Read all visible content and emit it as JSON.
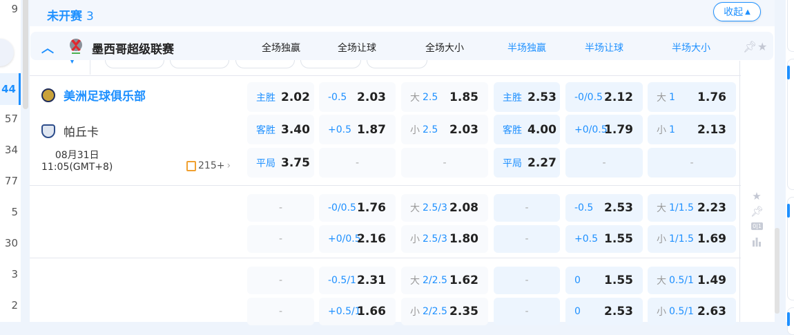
{
  "left_nav": {
    "counts": [
      "9",
      "44",
      "57",
      "34",
      "77",
      "5",
      "30",
      "3",
      "2"
    ],
    "selected_index": 1
  },
  "status": {
    "title": "未开赛",
    "count": "3"
  },
  "collapse_button": {
    "label": "收起",
    "icon": "caret-up-icon"
  },
  "league": {
    "name": "墨西哥超级联赛",
    "logo": "liga-mx-logo",
    "logo_text": "LIGA MX"
  },
  "columns": [
    "全场独赢",
    "全场让球",
    "全场大小",
    "半场独赢",
    "半场让球",
    "半场大小"
  ],
  "colors": {
    "accent": "#1e90ff",
    "ht_cell_bg": "#edf5fe",
    "ft_cell_bg": "#f8fafd"
  },
  "match": {
    "home": "美洲足球俱乐部",
    "away": "帕丘卡",
    "date": "08月31日",
    "time": "11:05(GMT+8)",
    "more_markets": "215+"
  },
  "sections": [
    {
      "rows": [
        [
          {
            "label": "主胜",
            "odds": "2.02"
          },
          {
            "line": "-0.5",
            "odds": "2.03"
          },
          {
            "ou": "大",
            "line": "2.5",
            "odds": "1.85"
          },
          {
            "label": "主胜",
            "odds": "2.53"
          },
          {
            "line": "-0/0.5",
            "odds": "2.12"
          },
          {
            "ou": "大",
            "line": "1",
            "odds": "1.76"
          }
        ],
        [
          {
            "label": "客胜",
            "odds": "3.40"
          },
          {
            "line": "+0.5",
            "odds": "1.87"
          },
          {
            "ou": "小",
            "line": "2.5",
            "odds": "2.03"
          },
          {
            "label": "客胜",
            "odds": "4.00"
          },
          {
            "line": "+0/0.5",
            "odds": "1.79"
          },
          {
            "ou": "小",
            "line": "1",
            "odds": "2.13"
          }
        ],
        [
          {
            "label": "平局",
            "odds": "3.75"
          },
          {
            "dash": "-"
          },
          {
            "dash": "-"
          },
          {
            "label": "平局",
            "odds": "2.27"
          },
          {
            "dash": "-"
          },
          {
            "dash": "-"
          }
        ]
      ]
    },
    {
      "rows": [
        [
          {
            "dash": "-"
          },
          {
            "line": "-0/0.5",
            "odds": "1.76"
          },
          {
            "ou": "大",
            "line": "2.5/3",
            "odds": "2.08"
          },
          {
            "dash": "-"
          },
          {
            "line": "-0.5",
            "odds": "2.53"
          },
          {
            "ou": "大",
            "line": "1/1.5",
            "odds": "2.23"
          }
        ],
        [
          {
            "dash": "-"
          },
          {
            "line": "+0/0.5",
            "odds": "2.16"
          },
          {
            "ou": "小",
            "line": "2.5/3",
            "odds": "1.80"
          },
          {
            "dash": "-"
          },
          {
            "line": "+0.5",
            "odds": "1.55"
          },
          {
            "ou": "小",
            "line": "1/1.5",
            "odds": "1.69"
          }
        ]
      ]
    },
    {
      "rows": [
        [
          {
            "dash": "-"
          },
          {
            "line": "-0.5/1",
            "odds": "2.31"
          },
          {
            "ou": "大",
            "line": "2/2.5",
            "odds": "1.62"
          },
          {
            "dash": "-"
          },
          {
            "line": "0",
            "odds": "1.55"
          },
          {
            "ou": "大",
            "line": "0.5/1",
            "odds": "1.49"
          }
        ],
        [
          {
            "dash": "-"
          },
          {
            "line": "+0.5/1",
            "odds": "1.66"
          },
          {
            "ou": "小",
            "line": "2/2.5",
            "odds": "2.35"
          },
          {
            "dash": "-"
          },
          {
            "line": "0",
            "odds": "2.53"
          },
          {
            "ou": "小",
            "line": "0.5/1",
            "odds": "2.63"
          }
        ]
      ]
    }
  ],
  "side_icons": {
    "score_label": "0|1"
  }
}
